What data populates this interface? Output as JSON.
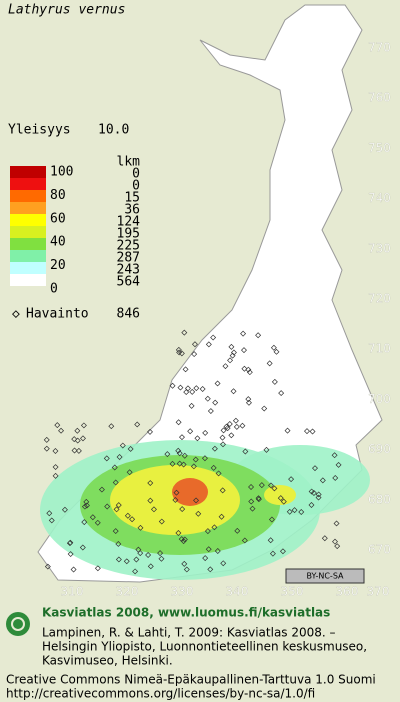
{
  "header": {
    "species": "Lathyrus vernus",
    "frequency_label": "Yleisyys",
    "frequency_value": "10.0"
  },
  "legend": {
    "count_header": "lkm",
    "levels": [
      100,
      80,
      60,
      40,
      20,
      0
    ],
    "counts": [
      0,
      0,
      15,
      36,
      124,
      195,
      225,
      287,
      243,
      564
    ],
    "observation_label": "Havainto",
    "observation_count": 846
  },
  "grid": {
    "northing": [
      770,
      760,
      750,
      740,
      730,
      720,
      710,
      700,
      690,
      680,
      670
    ],
    "easting": [
      310,
      320,
      330,
      340,
      350,
      360,
      370
    ]
  },
  "license_badge": "BY-NC-SA",
  "footer": {
    "headline": "Kasviatlas 2008, www.luomus.fi/kasviatlas",
    "citation": [
      "Lampinen, R. & Lahti, T. 2009: Kasviatlas 2008. –",
      "Helsingin Yliopisto, Luonnontieteellinen keskusmuseo,",
      "Kasvimuseo, Helsinki."
    ],
    "license": [
      "Creative Commons Nimeä-Epäkaupallinen-Tarttuva 1.0 Suomi",
      "http://creativecommons.org/licenses/by-nc-sa/1.0/fi"
    ]
  }
}
